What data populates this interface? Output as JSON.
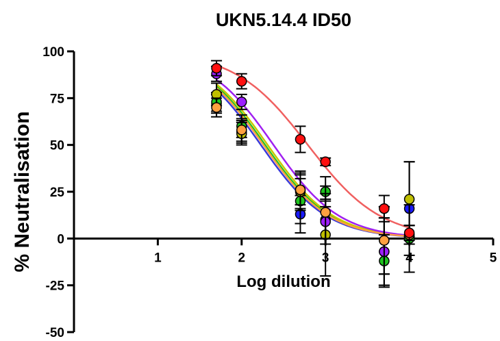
{
  "chart_data": {
    "type": "scatter",
    "title": "UKN5.14.4 ID50",
    "xlabel": "Log dilution",
    "ylabel": "% Neutralisation",
    "xlim": [
      0,
      5
    ],
    "ylim": [
      -50,
      100
    ],
    "xticks": [
      1,
      2,
      3,
      4,
      5
    ],
    "xtick_labels": [
      "1",
      "2",
      "3",
      "4",
      "5"
    ],
    "yticks": [
      -50,
      -25,
      0,
      25,
      50,
      75,
      100
    ],
    "ytick_labels": [
      "-50",
      "-25",
      "0",
      "25",
      "50",
      "75",
      "100"
    ],
    "grid": false,
    "legend": "none",
    "series": [
      {
        "color": "#1a1aff",
        "curve_color": "#3a3ad9",
        "x": [
          1.7,
          2.0,
          2.7,
          3.0,
          3.7,
          4.0
        ],
        "y": [
          72,
          57,
          13,
          10,
          -7,
          16
        ],
        "err": [
          5,
          6,
          10,
          10,
          18,
          25
        ],
        "fit": {
          "bottom": 0,
          "top": 100,
          "ec50": 2.23,
          "hill": 1.1
        }
      },
      {
        "color": "#1fc41f",
        "curve_color": "#1fc41f",
        "x": [
          1.7,
          2.0,
          2.7,
          3.0,
          3.7,
          4.0
        ],
        "y": [
          73,
          60,
          20,
          25,
          -12,
          0
        ],
        "err": [
          5,
          6,
          12,
          8,
          14,
          18
        ],
        "fit": {
          "bottom": 0,
          "top": 100,
          "ec50": 2.28,
          "hill": 1.1
        }
      },
      {
        "color": "#bfbf00",
        "curve_color": "#c8c800",
        "x": [
          1.7,
          2.0,
          2.7,
          3.0,
          3.7,
          4.0
        ],
        "y": [
          77,
          56,
          25,
          2,
          -1,
          21
        ],
        "err": [
          6,
          6,
          10,
          22,
          18,
          20
        ],
        "fit": {
          "bottom": 0,
          "top": 100,
          "ec50": 2.31,
          "hill": 1.1
        }
      },
      {
        "color": "#9d1fff",
        "curve_color": "#a020f0",
        "x": [
          1.7,
          2.0,
          2.7,
          3.0,
          3.7,
          4.0
        ],
        "y": [
          88,
          73,
          26,
          9,
          -7,
          2
        ],
        "err": [
          4,
          4,
          10,
          12,
          18,
          5
        ],
        "fit": {
          "bottom": 0,
          "top": 100,
          "ec50": 2.38,
          "hill": 1.1
        }
      },
      {
        "color": "#ffa040",
        "curve_color": "#ffa040",
        "x": [
          1.7,
          2.0,
          2.7,
          3.0,
          3.7,
          4.0
        ],
        "y": [
          70,
          58,
          26,
          14,
          -1,
          2
        ],
        "err": [
          5,
          6,
          8,
          14,
          18,
          5
        ],
        "fit": {
          "bottom": 0,
          "top": 100,
          "ec50": 2.26,
          "hill": 1.1
        }
      },
      {
        "color": "#ff1010",
        "curve_color": "#f06060",
        "x": [
          1.7,
          2.0,
          2.7,
          3.0,
          3.7,
          4.0
        ],
        "y": [
          91,
          84,
          53,
          41,
          16,
          3
        ],
        "err": [
          4,
          4,
          7,
          2,
          7,
          4
        ],
        "fit": {
          "bottom": 0,
          "top": 100,
          "ec50": 2.79,
          "hill": 1.0
        }
      }
    ]
  }
}
